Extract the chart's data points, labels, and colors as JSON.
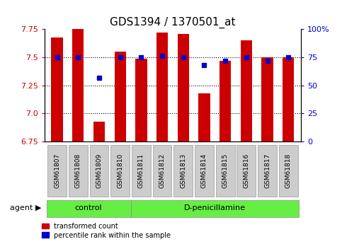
{
  "title": "GDS1394 / 1370501_at",
  "samples": [
    "GSM61807",
    "GSM61808",
    "GSM61809",
    "GSM61810",
    "GSM61811",
    "GSM61812",
    "GSM61813",
    "GSM61814",
    "GSM61815",
    "GSM61816",
    "GSM61817",
    "GSM61818"
  ],
  "red_values": [
    7.68,
    7.79,
    6.93,
    7.55,
    7.49,
    7.72,
    7.71,
    7.18,
    7.47,
    7.65,
    7.5,
    7.5
  ],
  "blue_values": [
    75,
    75,
    57,
    75,
    75,
    76,
    75,
    68,
    72,
    75,
    72,
    75
  ],
  "ylim_left": [
    6.75,
    7.75
  ],
  "ylim_right": [
    0,
    100
  ],
  "yticks_left": [
    6.75,
    7.0,
    7.25,
    7.5,
    7.75
  ],
  "yticks_right": [
    0,
    25,
    50,
    75,
    100
  ],
  "ytick_labels_right": [
    "0",
    "25",
    "50",
    "75",
    "100%"
  ],
  "n_control": 4,
  "n_treatment": 8,
  "control_label": "control",
  "treatment_label": "D-penicillamine",
  "agent_label": "agent",
  "legend_red": "transformed count",
  "legend_blue": "percentile rank within the sample",
  "bar_color": "#cc0000",
  "dot_color": "#0000cc",
  "bar_bottom": 6.75,
  "group_bg_color": "#66ee44",
  "tick_label_bg": "#cccccc",
  "left_axis_color": "#cc0000",
  "right_axis_color": "#0000cc",
  "bar_width": 0.55,
  "title_fontsize": 11,
  "tick_fontsize": 8,
  "label_fontsize": 8,
  "xlim": [
    -0.6,
    11.6
  ]
}
